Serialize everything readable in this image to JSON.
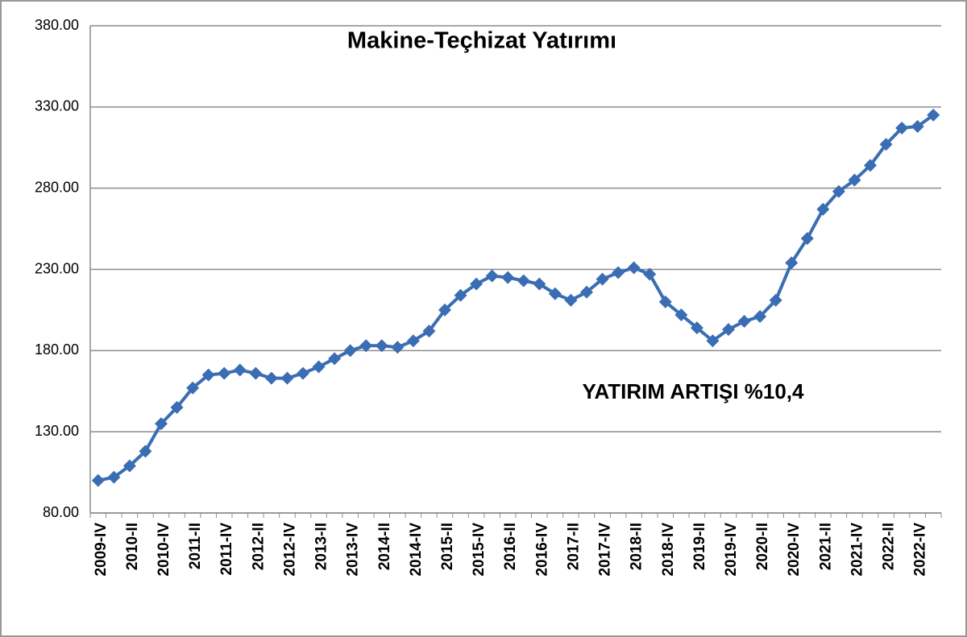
{
  "chart_data": {
    "type": "line",
    "title": "Makine-Teçhizat Yatırımı",
    "annotation": "YATIRIM ARTIŞI %10,4",
    "categories": [
      "2009-IV",
      null,
      "2010-II",
      null,
      "2010-IV",
      null,
      "2011-II",
      null,
      "2011-IV",
      null,
      "2012-II",
      null,
      "2012-IV",
      null,
      "2013-II",
      null,
      "2013-IV",
      null,
      "2014-II",
      null,
      "2014-IV",
      null,
      "2015-II",
      null,
      "2015-IV",
      null,
      "2016-II",
      null,
      "2016-IV",
      null,
      "2017-II",
      null,
      "2017-IV",
      null,
      "2018-II",
      null,
      "2018-IV",
      null,
      "2019-II",
      null,
      "2019-IV",
      null,
      "2020-II",
      null,
      "2020-IV",
      null,
      "2021-II",
      null,
      "2021-IV",
      null,
      "2022-II",
      null,
      "2022-IV",
      null
    ],
    "values": [
      100,
      102,
      109,
      118,
      135,
      145,
      157,
      165,
      166,
      168,
      166,
      163,
      163,
      166,
      170,
      175,
      180,
      183,
      183,
      182,
      186,
      192,
      205,
      214,
      221,
      226,
      225,
      223,
      221,
      215,
      211,
      216,
      224,
      228,
      231,
      227,
      210,
      202,
      194,
      186,
      193,
      198,
      201,
      211,
      234,
      249,
      267,
      278,
      285,
      294,
      307,
      317,
      318,
      325
    ],
    "color": "#3a6db3",
    "ylim": [
      80,
      380
    ],
    "yticks": [
      {
        "value": 80,
        "label": "80.00"
      },
      {
        "value": 130,
        "label": "130.00"
      },
      {
        "value": 180,
        "label": "180.00"
      },
      {
        "value": 230,
        "label": "230.00"
      },
      {
        "value": 280,
        "label": "280.00"
      },
      {
        "value": 330,
        "label": "330.00"
      },
      {
        "value": 380,
        "label": "380.00"
      }
    ],
    "grid": true
  }
}
